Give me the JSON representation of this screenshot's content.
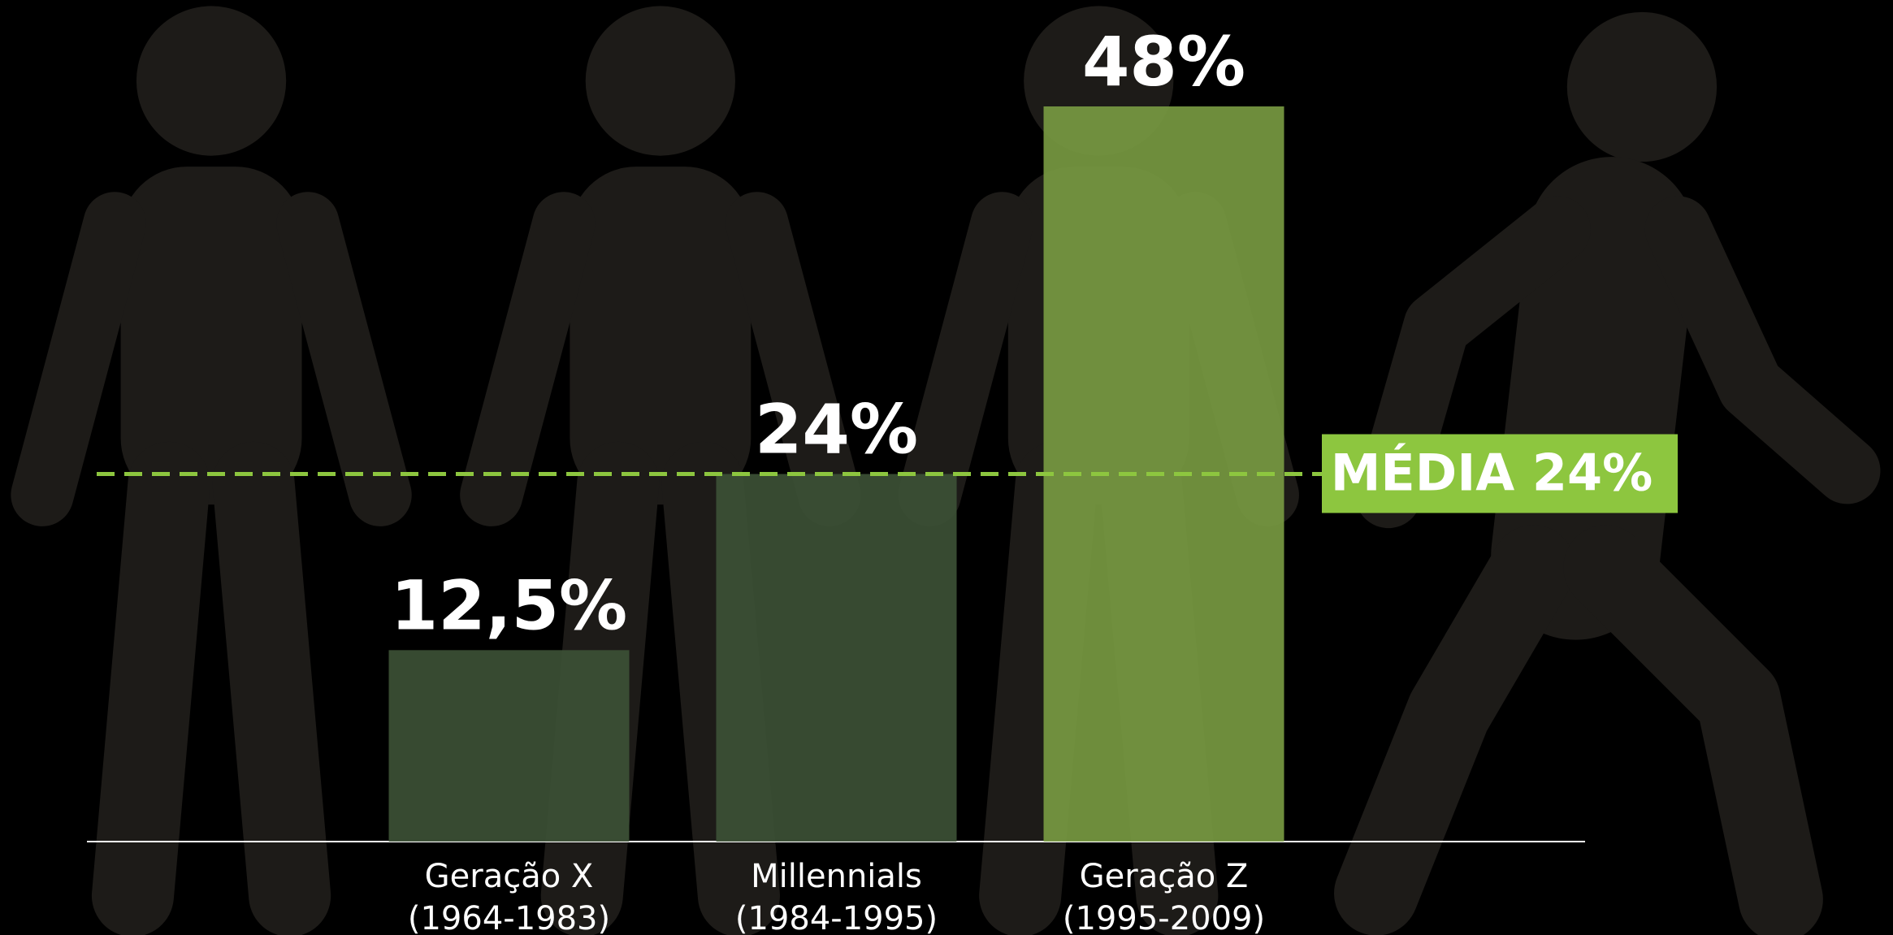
{
  "chart_data": {
    "type": "bar",
    "categories": [
      [
        "Geração X",
        "(1964-1983)"
      ],
      [
        "Millennials",
        "(1984-1995)"
      ],
      [
        "Geração Z",
        "(1995-2009)"
      ]
    ],
    "values": [
      12.5,
      24,
      48
    ],
    "value_labels": [
      "12,5%",
      "24%",
      "48%"
    ],
    "colors": [
      "#3d5236",
      "#3d5236",
      "#7a9c42"
    ],
    "ylim": [
      0,
      48
    ],
    "reference_line": {
      "value": 24,
      "label": "MÉDIA 24%",
      "color": "#8dc63f"
    }
  }
}
